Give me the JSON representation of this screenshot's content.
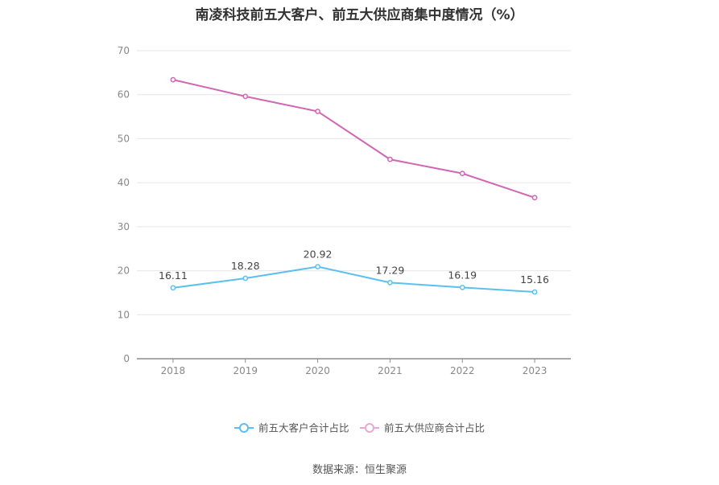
{
  "chart_data": {
    "type": "line",
    "title": "南凌科技前五大客户、前五大供应商集中度情况（%）",
    "source": "数据来源：恒生聚源",
    "categories": [
      "2018",
      "2019",
      "2020",
      "2021",
      "2022",
      "2023"
    ],
    "ylim": [
      0,
      70
    ],
    "yticks": [
      0,
      10,
      20,
      30,
      40,
      50,
      60,
      70
    ],
    "grid": true,
    "legend_position": "bottom",
    "series": [
      {
        "name": "前五大客户合计占比",
        "color": "#5bc0f0",
        "values": [
          16.11,
          18.28,
          20.92,
          17.29,
          16.19,
          15.16
        ],
        "labels": [
          "16.11",
          "18.28",
          "20.92",
          "17.29",
          "16.19",
          "15.16"
        ],
        "show_labels": true
      },
      {
        "name": "前五大供应商合计占比",
        "color": "#d066b4",
        "legend_color": "#e8a8d8",
        "values": [
          63.4,
          59.6,
          56.2,
          45.3,
          42.1,
          36.6
        ],
        "show_labels": false
      }
    ]
  }
}
